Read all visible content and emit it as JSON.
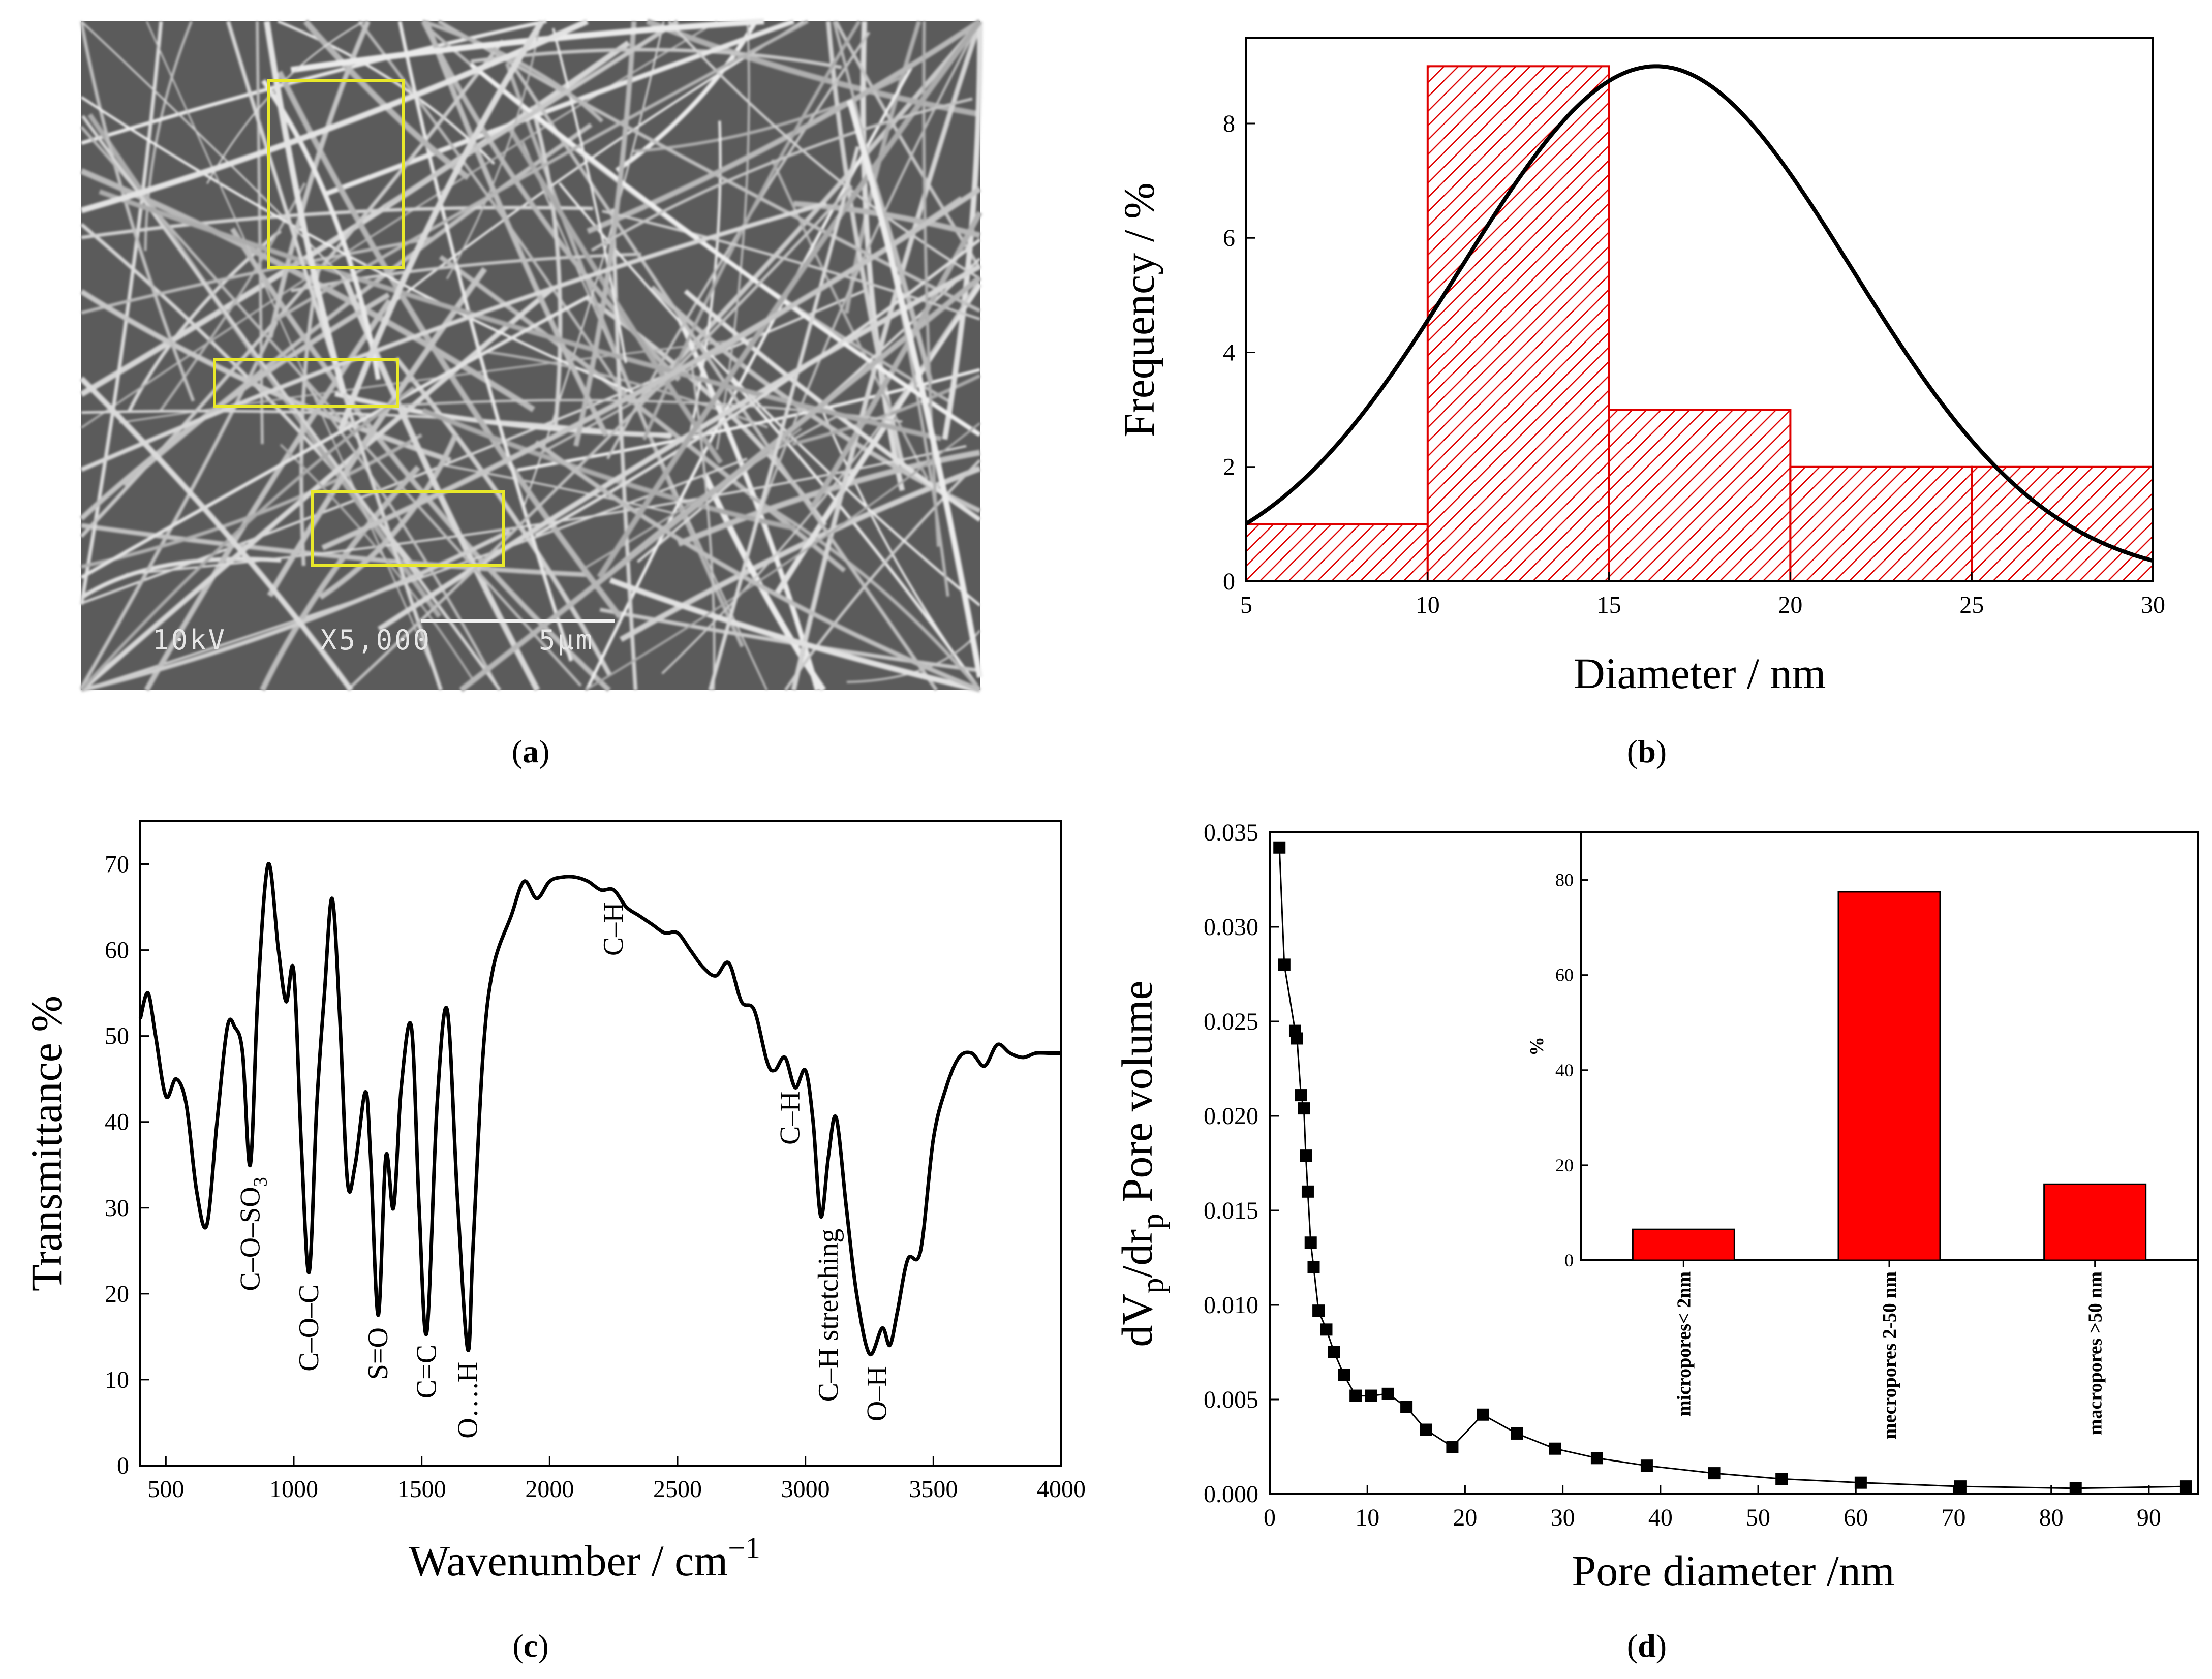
{
  "panels": {
    "a": {
      "caption_letter": "a",
      "sem_labels": [
        "10kV",
        "X5,000",
        "5μm"
      ]
    },
    "b": {
      "caption_letter": "b"
    },
    "c": {
      "caption_letter": "c"
    },
    "d": {
      "caption_letter": "d"
    }
  },
  "colors": {
    "hist_red": "#e00000",
    "bar_red": "#ff0000",
    "box_yellow": "#e8e82a"
  },
  "chart_data": [
    {
      "id": "b",
      "type": "bar",
      "title": "",
      "xlabel": "Diameter / nm",
      "ylabel": "Frequency / %",
      "xlim": [
        5,
        30
      ],
      "ylim": [
        0,
        9.5
      ],
      "xticks": [
        5,
        10,
        15,
        20,
        25,
        30
      ],
      "yticks": [
        0,
        2,
        4,
        6,
        8
      ],
      "bins": [
        {
          "from": 5,
          "to": 10,
          "value": 1
        },
        {
          "from": 10,
          "to": 15,
          "value": 9
        },
        {
          "from": 15,
          "to": 20,
          "value": 3
        },
        {
          "from": 20,
          "to": 25,
          "value": 2
        },
        {
          "from": 25,
          "to": 30,
          "value": 2
        }
      ],
      "fit": {
        "type": "gaussian",
        "mean": 16.3,
        "sigma": 5.4,
        "amplitude": 9
      }
    },
    {
      "id": "c",
      "type": "line",
      "xlabel": "Wavenumber / cm",
      "xlabel_sup": "−1",
      "ylabel": "Transmittance  %",
      "xlim": [
        400,
        4000
      ],
      "ylim": [
        0,
        75
      ],
      "xticks": [
        500,
        1000,
        1500,
        2000,
        2500,
        3000,
        3500,
        4000
      ],
      "yticks": [
        0,
        10,
        20,
        30,
        40,
        50,
        60,
        70
      ],
      "x": [
        400,
        430,
        460,
        500,
        540,
        580,
        620,
        660,
        700,
        740,
        770,
        800,
        830,
        860,
        900,
        940,
        970,
        1000,
        1030,
        1060,
        1090,
        1120,
        1150,
        1180,
        1210,
        1240,
        1280,
        1300,
        1330,
        1360,
        1390,
        1420,
        1460,
        1490,
        1520,
        1560,
        1600,
        1640,
        1680,
        1700,
        1740,
        1780,
        1850,
        1900,
        1950,
        2000,
        2050,
        2100,
        2150,
        2200,
        2250,
        2300,
        2350,
        2400,
        2450,
        2500,
        2550,
        2600,
        2650,
        2700,
        2750,
        2800,
        2850,
        2880,
        2920,
        2960,
        3000,
        3030,
        3060,
        3090,
        3120,
        3160,
        3200,
        3250,
        3300,
        3330,
        3360,
        3400,
        3450,
        3500,
        3550,
        3600,
        3650,
        3700,
        3750,
        3800,
        3850,
        3900,
        3950,
        4000
      ],
      "y": [
        52,
        55,
        50,
        43,
        45,
        42,
        32,
        28,
        40,
        51,
        51,
        48,
        35,
        55,
        70,
        60,
        54,
        57.5,
        37,
        22.5,
        42,
        55,
        66,
        52,
        33,
        35,
        43.5,
        36,
        17.5,
        36,
        30,
        44,
        51,
        30,
        15.5,
        42,
        53,
        31,
        13.5,
        25,
        48,
        58,
        64,
        68,
        66,
        68,
        68.5,
        68.5,
        68,
        67,
        67,
        65,
        64,
        63,
        62,
        62,
        60,
        58,
        57,
        58.5,
        54,
        53,
        47,
        46,
        47.5,
        44,
        46,
        40,
        29,
        36,
        40.5,
        30,
        20,
        13,
        16,
        14,
        18,
        24,
        25,
        38,
        44,
        47.5,
        48,
        46.5,
        49,
        48,
        47.5,
        48,
        48,
        48
      ],
      "annotations": [
        {
          "text": "C–O–SO",
          "sub": "3",
          "x": 830,
          "y": 35
        },
        {
          "text": "C–O–C",
          "x": 1060,
          "y": 22.5
        },
        {
          "text": "S=O",
          "x": 1330,
          "y": 17.5
        },
        {
          "text": "C=C",
          "x": 1520,
          "y": 15.5
        },
        {
          "text": "O….H",
          "x": 1680,
          "y": 13.5
        },
        {
          "text": "C–H",
          "x": 2250,
          "y": 67
        },
        {
          "text": "C–H",
          "x": 2940,
          "y": 45
        },
        {
          "text": "C–H stretching",
          "x": 3090,
          "y": 29
        },
        {
          "text": "O–H",
          "x": 3280,
          "y": 13
        }
      ]
    },
    {
      "id": "d",
      "type": "scatter",
      "xlabel": "Pore diameter /nm",
      "ylabel": "dV",
      "ylabel_sub1": "p",
      "ylabel_mid": "/dr",
      "ylabel_sub2": "p",
      "ylabel_end": " Pore volume",
      "xlim": [
        0,
        95
      ],
      "ylim": [
        0,
        0.035
      ],
      "xticks": [
        0,
        10,
        20,
        30,
        40,
        50,
        60,
        70,
        80,
        90
      ],
      "yticks": [
        "0.000",
        "0.005",
        "0.010",
        "0.015",
        "0.020",
        "0.025",
        "0.030",
        "0.035"
      ],
      "x": [
        1.0,
        1.5,
        2.6,
        2.8,
        3.2,
        3.5,
        3.7,
        3.9,
        4.2,
        4.5,
        5.0,
        5.8,
        6.6,
        7.6,
        8.8,
        10.4,
        12.1,
        14.0,
        16.0,
        18.7,
        21.8,
        25.3,
        29.2,
        33.5,
        38.6,
        45.5,
        52.4,
        60.5,
        70.7,
        82.5,
        93.8
      ],
      "y": [
        0.0342,
        0.028,
        0.0245,
        0.0241,
        0.0211,
        0.0204,
        0.0179,
        0.016,
        0.0133,
        0.012,
        0.0097,
        0.0087,
        0.0075,
        0.0063,
        0.0052,
        0.0052,
        0.0053,
        0.0046,
        0.0034,
        0.0025,
        0.0042,
        0.0032,
        0.0024,
        0.0019,
        0.0015,
        0.0011,
        0.0008,
        0.0006,
        0.0004,
        0.0003,
        0.0004
      ],
      "inset": {
        "type": "bar",
        "ylabel": "%",
        "ylim": [
          0,
          90
        ],
        "yticks": [
          0,
          20,
          40,
          60,
          80
        ],
        "categories": [
          "micropores< 2nm",
          "mecropores 2-50 nm",
          "macropores >50 nm"
        ],
        "values": [
          6.5,
          77.5,
          16
        ]
      }
    }
  ]
}
